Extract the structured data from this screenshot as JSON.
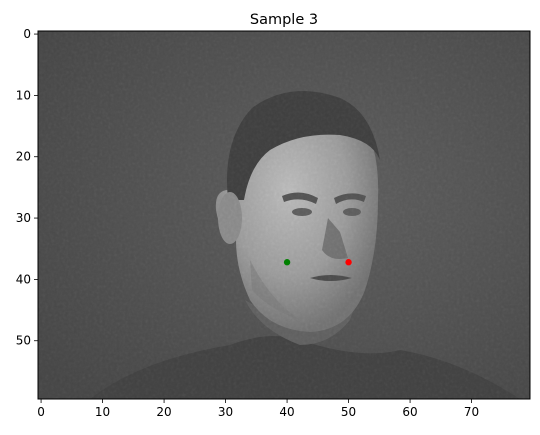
{
  "chart_data": {
    "type": "image",
    "title": "Sample 3",
    "colormap": "gray",
    "image_shape": [
      60,
      80
    ],
    "xlim": [
      -0.5,
      79.5
    ],
    "ylim": [
      59.5,
      -0.5
    ],
    "x_ticks": [
      0,
      10,
      20,
      30,
      40,
      50,
      60,
      70
    ],
    "x_tick_labels": [
      "0",
      "10",
      "20",
      "30",
      "40",
      "50",
      "60",
      "70"
    ],
    "y_ticks": [
      0,
      10,
      20,
      30,
      40,
      50
    ],
    "y_tick_labels": [
      "0",
      "10",
      "20",
      "30",
      "40",
      "50"
    ],
    "image_description": "grayscale portrait of a short-haired man in a dark high-neck top against a dark textured background",
    "points": [
      {
        "x": 40,
        "y": 37.2,
        "color": "#008000"
      },
      {
        "x": 50,
        "y": 37.2,
        "color": "#ff0000"
      }
    ],
    "grid": false
  }
}
